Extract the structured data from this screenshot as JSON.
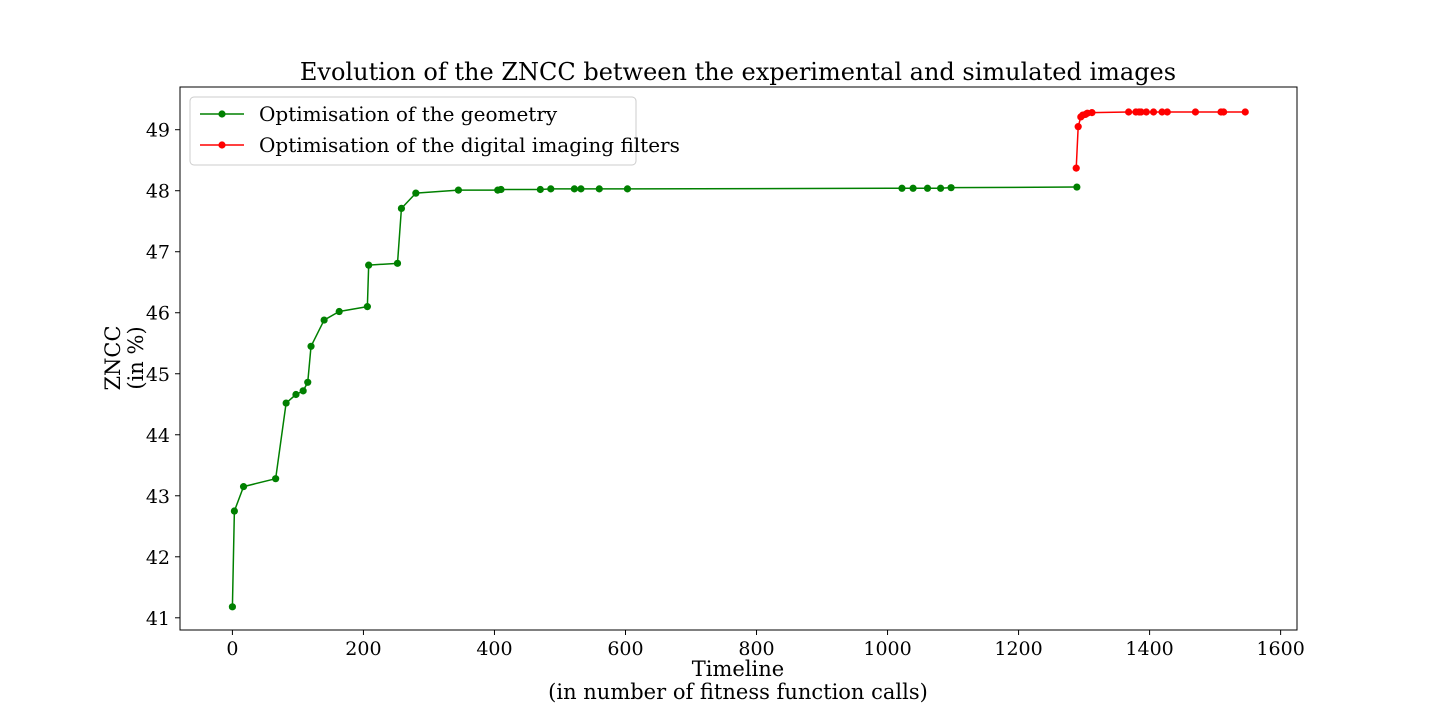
{
  "chart_data": {
    "type": "line",
    "title": "Evolution of the ZNCC between the experimental and simulated images",
    "xlabel": "Timeline",
    "xlabel_sub": "(in number of fitness function calls)",
    "ylabel": "ZNCC",
    "ylabel_sub": "(in %)",
    "xlim": [
      -80,
      1625
    ],
    "ylim": [
      40.8,
      49.7
    ],
    "xticks": [
      0,
      200,
      400,
      600,
      800,
      1000,
      1200,
      1400,
      1600
    ],
    "yticks": [
      41,
      42,
      43,
      44,
      45,
      46,
      47,
      48,
      49
    ],
    "grid": false,
    "legend_position": "top-left",
    "series": [
      {
        "name": "Optimisation of the geometry",
        "color": "#008000",
        "marker": "circle",
        "x": [
          0,
          3,
          17,
          66,
          82,
          97,
          108,
          115,
          120,
          140,
          163,
          206,
          208,
          252,
          258,
          280,
          345,
          405,
          410,
          470,
          486,
          522,
          532,
          560,
          603,
          1022,
          1039,
          1061,
          1081,
          1097,
          1289
        ],
        "y": [
          41.18,
          42.75,
          43.15,
          43.28,
          44.52,
          44.66,
          44.72,
          44.86,
          45.45,
          45.88,
          46.02,
          46.1,
          46.78,
          46.81,
          47.71,
          47.96,
          48.01,
          48.01,
          48.02,
          48.02,
          48.03,
          48.03,
          48.03,
          48.03,
          48.03,
          48.04,
          48.04,
          48.04,
          48.04,
          48.05,
          48.06
        ]
      },
      {
        "name": "Optimisation of the digital imaging filters",
        "color": "#ff0000",
        "marker": "circle",
        "x": [
          1288,
          1291,
          1295,
          1298,
          1302,
          1305,
          1312,
          1368,
          1379,
          1384,
          1387,
          1395,
          1406,
          1419,
          1427,
          1470,
          1509,
          1513,
          1546
        ],
        "y": [
          48.37,
          49.05,
          49.21,
          49.24,
          49.25,
          49.27,
          49.28,
          49.29,
          49.29,
          49.29,
          49.29,
          49.29,
          49.29,
          49.29,
          49.29,
          49.29,
          49.29,
          49.29,
          49.29
        ]
      }
    ]
  }
}
